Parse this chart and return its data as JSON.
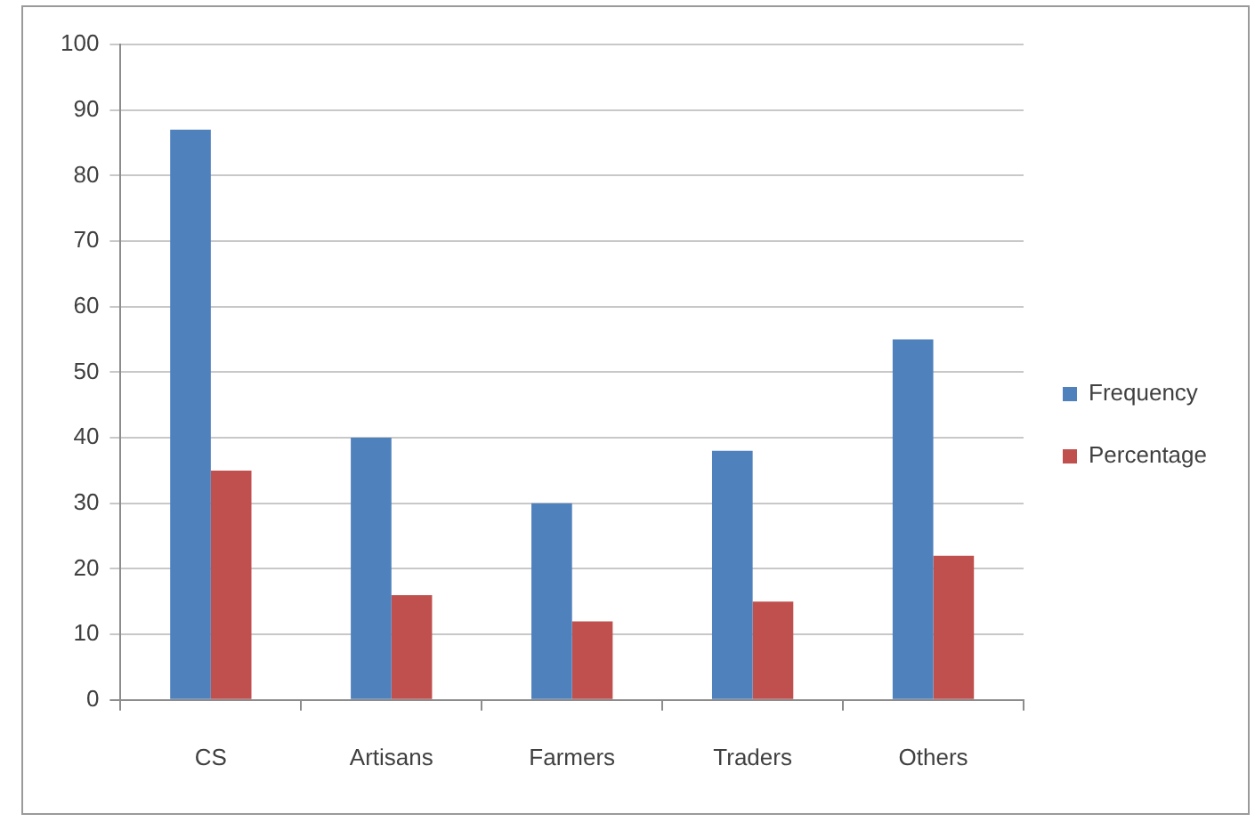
{
  "chart_data": {
    "type": "bar",
    "categories": [
      "CS",
      "Artisans",
      "Farmers",
      "Traders",
      "Others"
    ],
    "series": [
      {
        "name": "Frequency",
        "color": "#4f81bd",
        "values": [
          87,
          40,
          30,
          38,
          55
        ]
      },
      {
        "name": "Percentage",
        "color": "#c0504d",
        "values": [
          35,
          16,
          12,
          15,
          22
        ]
      }
    ],
    "ylim": [
      0,
      100
    ],
    "yticks": [
      0,
      10,
      20,
      30,
      40,
      50,
      60,
      70,
      80,
      90,
      100
    ],
    "grid": "y",
    "legend": "right"
  }
}
